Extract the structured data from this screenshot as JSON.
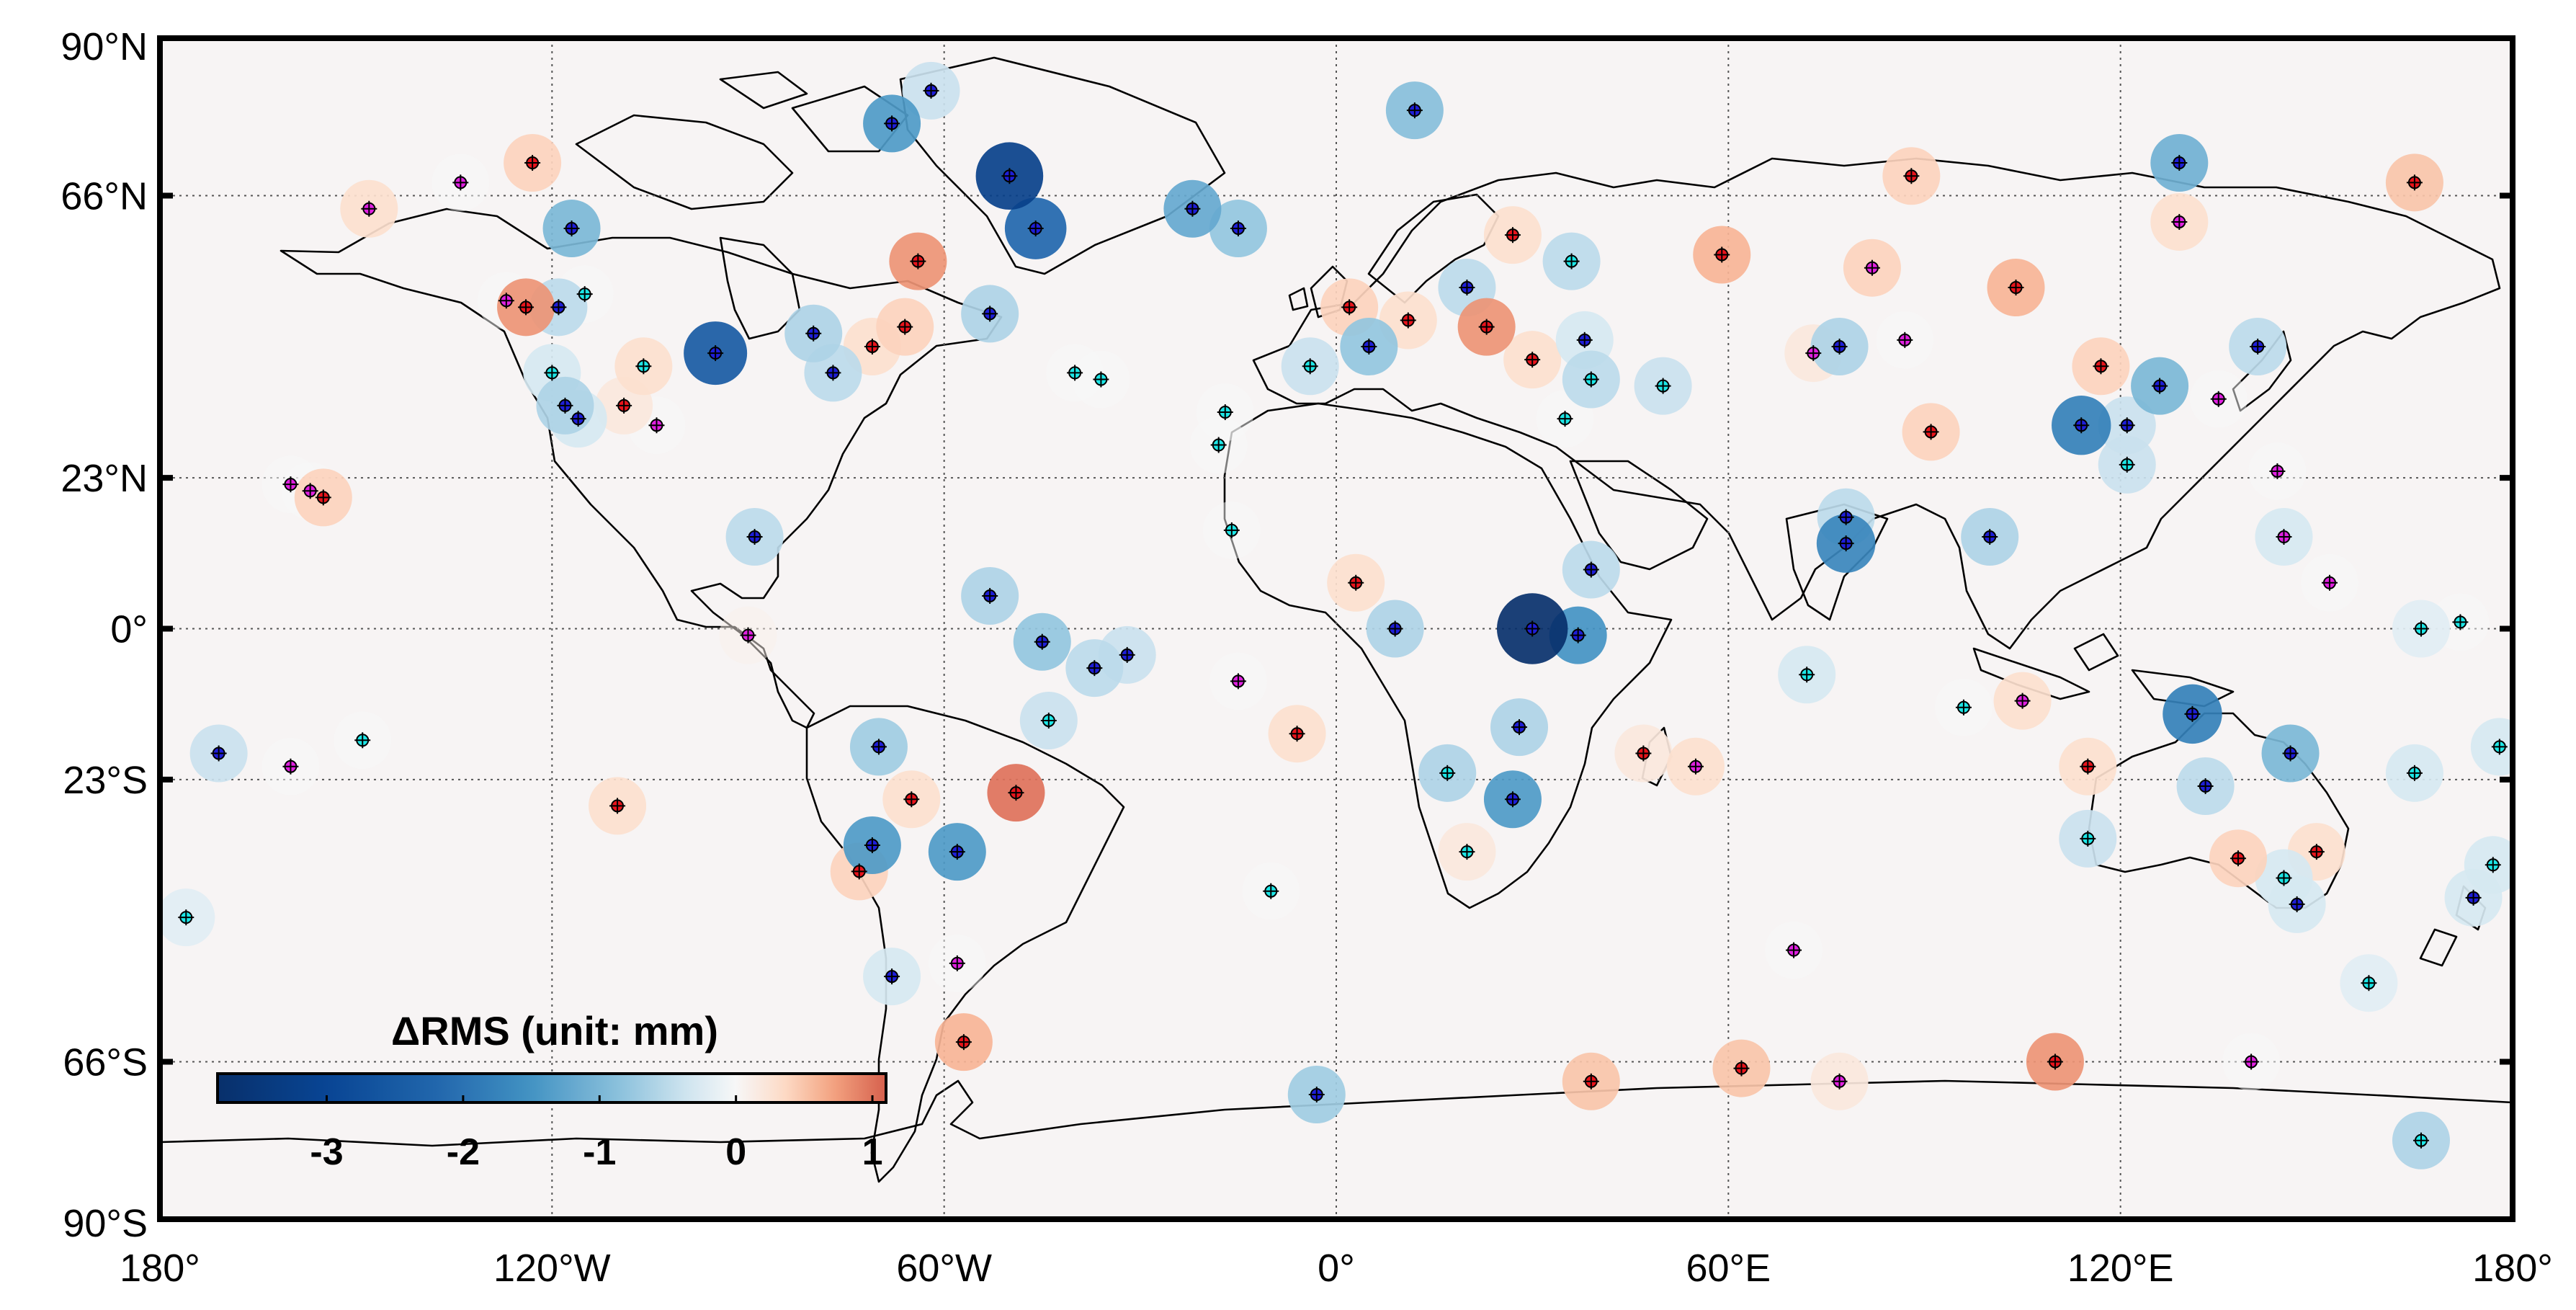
{
  "map": {
    "lon_labels": [
      "180°",
      "120°W",
      "60°W",
      "0°",
      "60°E",
      "120°E",
      "180°"
    ],
    "lon_values": [
      -180,
      -120,
      -60,
      0,
      60,
      120,
      180
    ],
    "lat_labels": [
      "90°N",
      "66°N",
      "23°N",
      "0°",
      "23°S",
      "66°S",
      "90°S"
    ],
    "lat_values": [
      90,
      66,
      23,
      0,
      -23,
      -66,
      -90
    ],
    "grid": "dotted",
    "ocean_color": "#f7f4f4",
    "coast_color": "#000000"
  },
  "colorbar": {
    "title": "ΔRMS (unit: mm)",
    "tick_labels": [
      "-3",
      "-2",
      "-1",
      "0",
      "1"
    ],
    "tick_values": [
      -3,
      -2,
      -1,
      0,
      1
    ],
    "range": [
      -3.8,
      1.1
    ],
    "placement": "bottom-left",
    "colors": [
      "#08306b",
      "#2166ac",
      "#4393c3",
      "#92c5de",
      "#d1e5f0",
      "#f7f7f7",
      "#fddbc7",
      "#f4a582",
      "#d6604d"
    ]
  },
  "station_marker_colors": {
    "red": "#e8141b",
    "blue": "#1e1ed8",
    "cyan": "#1de6e6",
    "magenta": "#e020e0"
  },
  "chart_data": {
    "type": "scatter",
    "title": "",
    "xlabel": "",
    "ylabel": "",
    "xlim": [
      -180,
      180
    ],
    "ylim": [
      -90,
      90
    ],
    "value_label": "ΔRMS (unit: mm)",
    "stations": [
      {
        "lon": -117,
        "lat": 61,
        "d": -1.0,
        "m": "blue"
      },
      {
        "lon": -123,
        "lat": 71,
        "d": 0.4,
        "m": "red"
      },
      {
        "lon": -148,
        "lat": 64,
        "d": 0.3,
        "m": "magenta"
      },
      {
        "lon": -134,
        "lat": 68,
        "d": 0,
        "m": "magenta"
      },
      {
        "lon": -124,
        "lat": 49,
        "d": 0.8,
        "m": "red"
      },
      {
        "lon": -119,
        "lat": 49,
        "d": -0.5,
        "m": "blue"
      },
      {
        "lon": -127,
        "lat": 50,
        "d": 0,
        "m": "magenta"
      },
      {
        "lon": -120,
        "lat": 39,
        "d": -0.3,
        "m": "cyan"
      },
      {
        "lon": -118,
        "lat": 34,
        "d": -0.6,
        "m": "blue"
      },
      {
        "lon": -116,
        "lat": 32,
        "d": -0.3,
        "m": "blue"
      },
      {
        "lon": -106,
        "lat": 40,
        "d": 0.3,
        "m": "cyan"
      },
      {
        "lon": -109,
        "lat": 34,
        "d": 0.2,
        "m": "red"
      },
      {
        "lon": -104,
        "lat": 31,
        "d": 0,
        "m": "magenta"
      },
      {
        "lon": -115,
        "lat": 51,
        "d": 0,
        "m": "cyan"
      },
      {
        "lon": -95,
        "lat": 42,
        "d": -2.5,
        "m": "blue"
      },
      {
        "lon": -80,
        "lat": 45,
        "d": -0.6,
        "m": "blue"
      },
      {
        "lon": -77,
        "lat": 39,
        "d": -0.5,
        "m": "blue"
      },
      {
        "lon": -71,
        "lat": 43,
        "d": 0.3,
        "m": "red"
      },
      {
        "lon": -66,
        "lat": 46,
        "d": 0.4,
        "m": "red"
      },
      {
        "lon": -64,
        "lat": 56,
        "d": 0.8,
        "m": "red"
      },
      {
        "lon": -53,
        "lat": 48,
        "d": -0.6,
        "m": "blue"
      },
      {
        "lon": -68,
        "lat": 77,
        "d": -1.4,
        "m": "blue"
      },
      {
        "lon": -62,
        "lat": 82,
        "d": -0.4,
        "m": "blue"
      },
      {
        "lon": -50,
        "lat": 69,
        "d": -3.2,
        "m": "blue"
      },
      {
        "lon": -46,
        "lat": 61,
        "d": -2.2,
        "m": "blue"
      },
      {
        "lon": -89,
        "lat": 14,
        "d": -0.5,
        "m": "blue"
      },
      {
        "lon": -90,
        "lat": -1,
        "d": 0.1,
        "m": "magenta"
      },
      {
        "lon": -53,
        "lat": 5,
        "d": -0.6,
        "m": "blue"
      },
      {
        "lon": -45,
        "lat": -2,
        "d": -0.8,
        "m": "blue"
      },
      {
        "lon": -37,
        "lat": -6,
        "d": -0.5,
        "m": "blue"
      },
      {
        "lon": -49,
        "lat": -25,
        "d": 1.0,
        "m": "red"
      },
      {
        "lon": -58,
        "lat": -34,
        "d": -1.4,
        "m": "blue"
      },
      {
        "lon": -71,
        "lat": -33,
        "d": -1.4,
        "m": "blue"
      },
      {
        "lon": -73,
        "lat": -37,
        "d": 0.4,
        "m": "red"
      },
      {
        "lon": -70,
        "lat": -18,
        "d": -0.7,
        "m": "blue"
      },
      {
        "lon": -65,
        "lat": -26,
        "d": 0.3,
        "m": "red"
      },
      {
        "lon": -68,
        "lat": -53,
        "d": -0.3,
        "m": "blue"
      },
      {
        "lon": -58,
        "lat": -51,
        "d": 0,
        "m": "magenta"
      },
      {
        "lon": -57,
        "lat": -63,
        "d": 0.6,
        "m": "red"
      },
      {
        "lon": -44,
        "lat": -14,
        "d": -0.4,
        "m": "cyan"
      },
      {
        "lon": -32,
        "lat": -4,
        "d": -0.4,
        "m": "blue"
      },
      {
        "lon": -40,
        "lat": 39,
        "d": 0,
        "m": "cyan"
      },
      {
        "lon": -36,
        "lat": 38,
        "d": 0,
        "m": "cyan"
      },
      {
        "lon": -17,
        "lat": 33,
        "d": 0,
        "m": "cyan"
      },
      {
        "lon": -18,
        "lat": 28,
        "d": 0,
        "m": "cyan"
      },
      {
        "lon": -16,
        "lat": 15,
        "d": 0,
        "m": "cyan"
      },
      {
        "lon": -15,
        "lat": -8,
        "d": 0,
        "m": "magenta"
      },
      {
        "lon": -6,
        "lat": -16,
        "d": 0.3,
        "m": "red"
      },
      {
        "lon": -10,
        "lat": -40,
        "d": 0,
        "m": "cyan"
      },
      {
        "lon": -22,
        "lat": 64,
        "d": -1.2,
        "m": "blue"
      },
      {
        "lon": -15,
        "lat": 61,
        "d": -0.8,
        "m": "blue"
      },
      {
        "lon": 12,
        "lat": 79,
        "d": -0.9,
        "m": "blue"
      },
      {
        "lon": -4,
        "lat": 40,
        "d": -0.4,
        "m": "cyan"
      },
      {
        "lon": 2,
        "lat": 49,
        "d": 0.4,
        "m": "red"
      },
      {
        "lon": 5,
        "lat": 43,
        "d": -0.8,
        "m": "blue"
      },
      {
        "lon": 11,
        "lat": 47,
        "d": 0.3,
        "m": "red"
      },
      {
        "lon": 20,
        "lat": 52,
        "d": -0.5,
        "m": "blue"
      },
      {
        "lon": 23,
        "lat": 46,
        "d": 0.8,
        "m": "red"
      },
      {
        "lon": 27,
        "lat": 60,
        "d": 0.3,
        "m": "red"
      },
      {
        "lon": 36,
        "lat": 56,
        "d": -0.5,
        "m": "cyan"
      },
      {
        "lon": 30,
        "lat": 41,
        "d": 0.3,
        "m": "red"
      },
      {
        "lon": 38,
        "lat": 44,
        "d": -0.3,
        "m": "blue"
      },
      {
        "lon": 39,
        "lat": 38,
        "d": -0.5,
        "m": "cyan"
      },
      {
        "lon": 35,
        "lat": 32,
        "d": 0,
        "m": "cyan"
      },
      {
        "lon": 50,
        "lat": 37,
        "d": -0.4,
        "m": "cyan"
      },
      {
        "lon": 59,
        "lat": 57,
        "d": 0.6,
        "m": "red"
      },
      {
        "lon": 82,
        "lat": 55,
        "d": 0.4,
        "m": "magenta"
      },
      {
        "lon": 73,
        "lat": 42,
        "d": 0.2,
        "m": "magenta"
      },
      {
        "lon": 77,
        "lat": 43,
        "d": -0.6,
        "m": "blue"
      },
      {
        "lon": 87,
        "lat": 44,
        "d": 0,
        "m": "magenta"
      },
      {
        "lon": 88,
        "lat": 69,
        "d": 0.4,
        "m": "red"
      },
      {
        "lon": 104,
        "lat": 52,
        "d": 0.6,
        "m": "red"
      },
      {
        "lon": 91,
        "lat": 30,
        "d": 0.4,
        "m": "red"
      },
      {
        "lon": 129,
        "lat": 71,
        "d": -1.1,
        "m": "blue"
      },
      {
        "lon": 129,
        "lat": 62,
        "d": 0.3,
        "m": "magenta"
      },
      {
        "lon": 165,
        "lat": 68,
        "d": 0.5,
        "m": "red"
      },
      {
        "lon": 114,
        "lat": 31,
        "d": -1.8,
        "m": "blue"
      },
      {
        "lon": 126,
        "lat": 37,
        "d": -1.0,
        "m": "blue"
      },
      {
        "lon": 121,
        "lat": 31,
        "d": -0.4,
        "m": "blue"
      },
      {
        "lon": 117,
        "lat": 40,
        "d": 0.4,
        "m": "red"
      },
      {
        "lon": 121,
        "lat": 25,
        "d": -0.4,
        "m": "cyan"
      },
      {
        "lon": 141,
        "lat": 43,
        "d": -0.5,
        "m": "blue"
      },
      {
        "lon": 135,
        "lat": 35,
        "d": 0,
        "m": "magenta"
      },
      {
        "lon": 100,
        "lat": 14,
        "d": -0.6,
        "m": "blue"
      },
      {
        "lon": 78,
        "lat": 13,
        "d": -1.7,
        "m": "blue"
      },
      {
        "lon": 78,
        "lat": 17,
        "d": -0.5,
        "m": "blue"
      },
      {
        "lon": 145,
        "lat": 14,
        "d": -0.3,
        "m": "magenta"
      },
      {
        "lon": 152,
        "lat": 7,
        "d": 0,
        "m": "magenta"
      },
      {
        "lon": 144,
        "lat": 24,
        "d": 0,
        "m": "magenta"
      },
      {
        "lon": 30,
        "lat": 0,
        "d": -3.8,
        "m": "blue"
      },
      {
        "lon": 37,
        "lat": -1,
        "d": -1.5,
        "m": "blue"
      },
      {
        "lon": 39,
        "lat": 9,
        "d": -0.5,
        "m": "blue"
      },
      {
        "lon": 9,
        "lat": 0,
        "d": -0.6,
        "m": "blue"
      },
      {
        "lon": 3,
        "lat": 7,
        "d": 0.3,
        "m": "red"
      },
      {
        "lon": 28,
        "lat": -15,
        "d": -0.6,
        "m": "blue"
      },
      {
        "lon": 27,
        "lat": -26,
        "d": -1.4,
        "m": "blue"
      },
      {
        "lon": 17,
        "lat": -22,
        "d": -0.6,
        "m": "cyan"
      },
      {
        "lon": 20,
        "lat": -34,
        "d": 0.2,
        "m": "cyan"
      },
      {
        "lon": 47,
        "lat": -19,
        "d": 0.2,
        "m": "red"
      },
      {
        "lon": 55,
        "lat": -21,
        "d": 0.3,
        "m": "magenta"
      },
      {
        "lon": 72,
        "lat": -7,
        "d": -0.3,
        "m": "cyan"
      },
      {
        "lon": 96,
        "lat": -12,
        "d": 0,
        "m": "cyan"
      },
      {
        "lon": 70,
        "lat": -49,
        "d": 0,
        "m": "magenta"
      },
      {
        "lon": 105,
        "lat": -11,
        "d": 0.3,
        "m": "magenta"
      },
      {
        "lon": 131,
        "lat": -13,
        "d": -1.8,
        "m": "blue"
      },
      {
        "lon": 115,
        "lat": -21,
        "d": 0.3,
        "m": "red"
      },
      {
        "lon": 115,
        "lat": -32,
        "d": -0.4,
        "m": "cyan"
      },
      {
        "lon": 133,
        "lat": -24,
        "d": -0.5,
        "m": "blue"
      },
      {
        "lon": 146,
        "lat": -19,
        "d": -1.0,
        "m": "blue"
      },
      {
        "lon": 138,
        "lat": -35,
        "d": 0.4,
        "m": "red"
      },
      {
        "lon": 150,
        "lat": -34,
        "d": 0.3,
        "m": "red"
      },
      {
        "lon": 147,
        "lat": -42,
        "d": -0.3,
        "m": "blue"
      },
      {
        "lon": 145,
        "lat": -38,
        "d": -0.3,
        "m": "cyan"
      },
      {
        "lon": 165,
        "lat": -22,
        "d": -0.3,
        "m": "cyan"
      },
      {
        "lon": 174,
        "lat": -41,
        "d": -0.3,
        "m": "blue"
      },
      {
        "lon": 177,
        "lat": -36,
        "d": -0.3,
        "m": "cyan"
      },
      {
        "lon": 158,
        "lat": -54,
        "d": -0.2,
        "m": "cyan"
      },
      {
        "lon": 166,
        "lat": 0,
        "d": -0.2,
        "m": "cyan"
      },
      {
        "lon": 172,
        "lat": 1,
        "d": 0,
        "m": "cyan"
      },
      {
        "lon": 178,
        "lat": -18,
        "d": -0.3,
        "m": "cyan"
      },
      {
        "lon": -171,
        "lat": -19,
        "d": -0.4,
        "m": "blue"
      },
      {
        "lon": -155,
        "lat": 20,
        "d": 0.4,
        "m": "red"
      },
      {
        "lon": -157,
        "lat": 21,
        "d": 0,
        "m": "magenta"
      },
      {
        "lon": -160,
        "lat": 22,
        "d": 0,
        "m": "magenta"
      },
      {
        "lon": -149,
        "lat": -17,
        "d": 0,
        "m": "cyan"
      },
      {
        "lon": -160,
        "lat": -21,
        "d": 0,
        "m": "magenta"
      },
      {
        "lon": -110,
        "lat": -27,
        "d": 0.3,
        "m": "red"
      },
      {
        "lon": -176,
        "lat": -44,
        "d": -0.2,
        "m": "cyan"
      },
      {
        "lon": 166,
        "lat": -78,
        "d": -0.6,
        "m": "cyan"
      },
      {
        "lon": 110,
        "lat": -66,
        "d": 0.8,
        "m": "red"
      },
      {
        "lon": 62,
        "lat": -67,
        "d": 0.5,
        "m": "red"
      },
      {
        "lon": 77,
        "lat": -69,
        "d": 0.2,
        "m": "magenta"
      },
      {
        "lon": 39,
        "lat": -69,
        "d": 0.5,
        "m": "red"
      },
      {
        "lon": -3,
        "lat": -71,
        "d": -0.7,
        "m": "blue"
      },
      {
        "lon": 140,
        "lat": -66,
        "d": 0,
        "m": "magenta"
      }
    ]
  }
}
